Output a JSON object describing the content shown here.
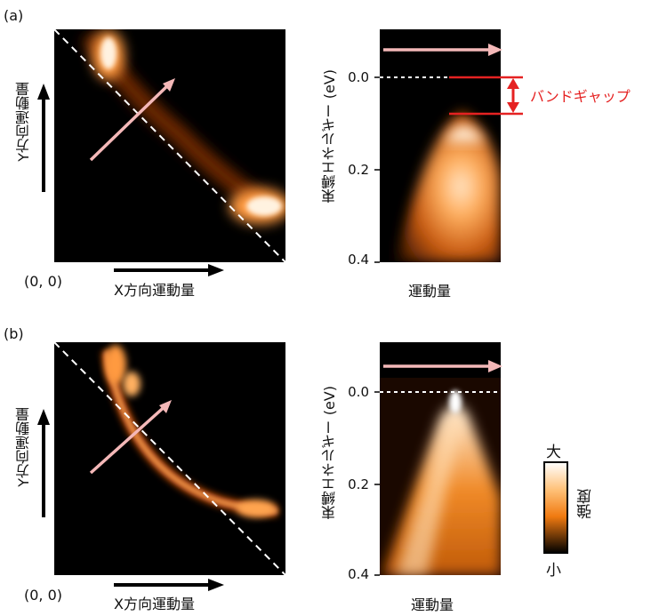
{
  "panel_a": {
    "label": "(a)",
    "origin": "(0, 0)",
    "x_axis": "X方向運動量",
    "y_axis": "Y方向運動量",
    "energy_axis": "束縛エネルギー (eV)",
    "momentum_axis": "運動量",
    "ticks": [
      "0.0",
      "0.2",
      "0.4"
    ],
    "bandgap": "バンドギャップ"
  },
  "panel_b": {
    "label": "(b)",
    "origin": "(0, 0)",
    "x_axis": "X方向運動量",
    "y_axis": "Y方向運動量",
    "energy_axis": "束縛エネルギー (eV)",
    "momentum_axis": "運動量",
    "ticks": [
      "0.0",
      "0.2",
      "0.4"
    ]
  },
  "colorbar": {
    "high": "大",
    "low": "小",
    "title": "強度"
  },
  "colors": {
    "background": "#000000",
    "intensity": "#ff8a1c",
    "arrow": "#f4b8b8",
    "bandgap": "#e52222"
  }
}
